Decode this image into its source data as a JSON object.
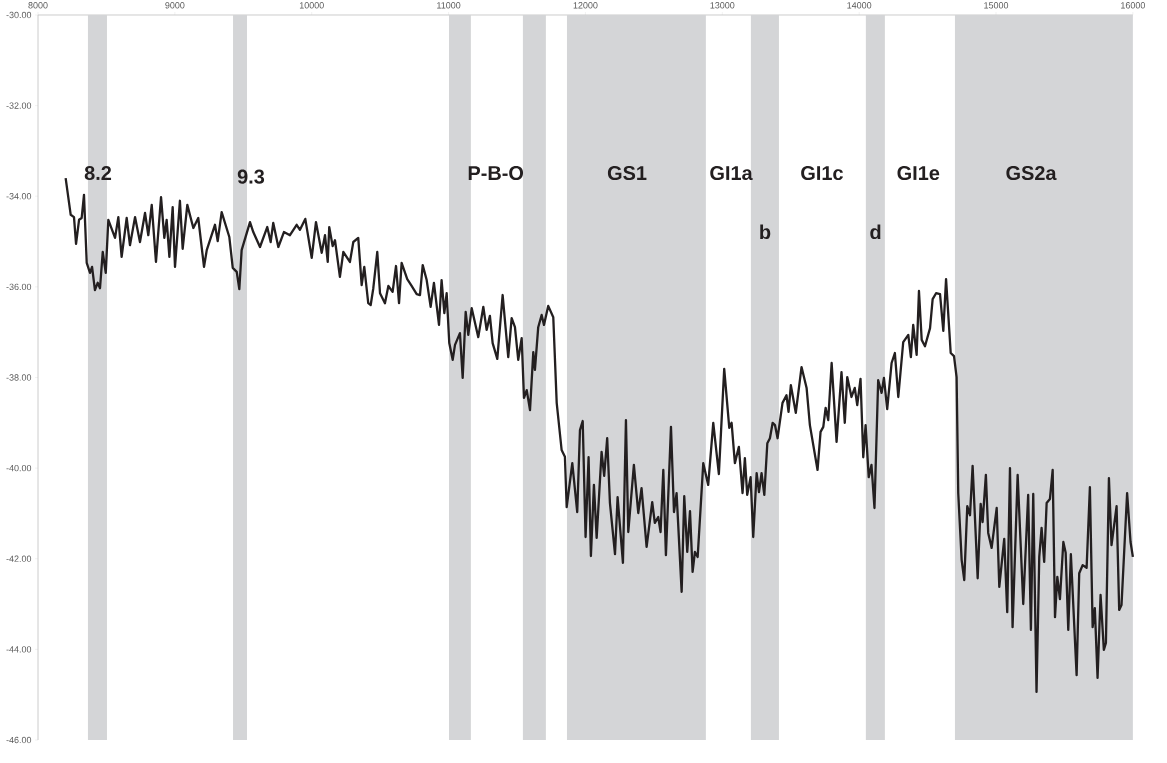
{
  "chart_data": {
    "type": "line",
    "marker": "none",
    "line_style": "solid",
    "xlim": [
      8000,
      16000
    ],
    "ylim": [
      -46,
      -30
    ],
    "xticks": [
      8000,
      9000,
      10000,
      11000,
      12000,
      13000,
      14000,
      15000,
      16000
    ],
    "yticks": [
      {
        "value": -30,
        "label": "-30.00"
      },
      {
        "value": -32,
        "label": "-32.00"
      },
      {
        "value": -34,
        "label": "-34.00"
      },
      {
        "value": -36,
        "label": "-36.00"
      },
      {
        "value": -38,
        "label": "-38.00"
      },
      {
        "value": -40,
        "label": "-40.00"
      },
      {
        "value": -42,
        "label": "-42.00"
      },
      {
        "value": -44,
        "label": "-44.00"
      },
      {
        "value": -46,
        "label": "-46.00"
      }
    ],
    "bands": [
      {
        "axis": "x",
        "from": 8365,
        "to": 8504,
        "color": "#d4d5d7"
      },
      {
        "axis": "x",
        "from": 9425,
        "to": 9527,
        "color": "#d4d5d7"
      },
      {
        "axis": "x",
        "from": 11003,
        "to": 11163,
        "color": "#d4d5d7"
      },
      {
        "axis": "x",
        "from": 11543,
        "to": 11711,
        "color": "#d4d5d7"
      },
      {
        "axis": "x",
        "from": 11865,
        "to": 12880,
        "color": "#d4d5d7"
      },
      {
        "axis": "x",
        "from": 13209,
        "to": 13414,
        "color": "#d4d5d7"
      },
      {
        "axis": "x",
        "from": 14049,
        "to": 14188,
        "color": "#d4d5d7"
      },
      {
        "axis": "x",
        "from": 14700,
        "to": 16000,
        "color": "#d4d5d7"
      }
    ],
    "annotations": [
      "8.2",
      "9.3",
      "P-B-O",
      "GS1",
      "GI1a",
      "b",
      "GI1c",
      "d",
      "GI1e",
      "GS2a"
    ],
    "series": [
      {
        "color": "#231f20",
        "x": [
          8202,
          8239,
          8263,
          8278,
          8300,
          8319,
          8336,
          8356,
          8380,
          8395,
          8416,
          8436,
          8453,
          8473,
          8495,
          8514,
          8563,
          8587,
          8611,
          8648,
          8672,
          8709,
          8745,
          8782,
          8806,
          8831,
          8862,
          8899,
          8923,
          8940,
          8960,
          8984,
          9001,
          9037,
          9057,
          9091,
          9135,
          9171,
          9213,
          9233,
          9293,
          9313,
          9342,
          9398,
          9423,
          9452,
          9471,
          9488,
          9549,
          9573,
          9622,
          9675,
          9700,
          9719,
          9756,
          9797,
          9841,
          9890,
          9914,
          9953,
          10000,
          10031,
          10073,
          10097,
          10117,
          10128,
          10153,
          10170,
          10206,
          10231,
          10279,
          10304,
          10340,
          10365,
          10384,
          10413,
          10431,
          10450,
          10479,
          10499,
          10535,
          10560,
          10591,
          10616,
          10638,
          10657,
          10698,
          10730,
          10767,
          10791,
          10811,
          10840,
          10869,
          10893,
          10930,
          10949,
          10969,
          10986,
          11005,
          11030,
          11047,
          11083,
          11103,
          11125,
          11144,
          11169,
          11217,
          11254,
          11278,
          11302,
          11322,
          11356,
          11395,
          11436,
          11461,
          11485,
          11509,
          11534,
          11551,
          11571,
          11595,
          11619,
          11631,
          11655,
          11680,
          11697,
          11728,
          11765,
          11790,
          11826,
          11850,
          11863,
          11904,
          11940,
          11960,
          11980,
          12001,
          12023,
          12040,
          12062,
          12082,
          12118,
          12137,
          12159,
          12179,
          12216,
          12235,
          12274,
          12296,
          12313,
          12354,
          12386,
          12410,
          12447,
          12488,
          12507,
          12532,
          12549,
          12569,
          12588,
          12625,
          12647,
          12666,
          12703,
          12722,
          12744,
          12764,
          12783,
          12800,
          12820,
          12861,
          12897,
          12934,
          12975,
          13014,
          13051,
          13068,
          13092,
          13121,
          13148,
          13165,
          13182,
          13207,
          13226,
          13251,
          13268,
          13287,
          13307,
          13329,
          13348,
          13368,
          13385,
          13404,
          13440,
          13469,
          13484,
          13501,
          13537,
          13579,
          13616,
          13640,
          13696,
          13718,
          13738,
          13755,
          13774,
          13799,
          13835,
          13871,
          13895,
          13913,
          13944,
          13968,
          13986,
          14010,
          14030,
          14047,
          14070,
          14090,
          14112,
          14139,
          14164,
          14181,
          14205,
          14237,
          14261,
          14286,
          14322,
          14359,
          14378,
          14395,
          14420,
          14437,
          14457,
          14481,
          14518,
          14537,
          14562,
          14591,
          14615,
          14635,
          14669,
          14693,
          14712,
          14724,
          14749,
          14768,
          14790,
          14810,
          14829,
          14866,
          14888,
          14902,
          14926,
          14943,
          14968,
          15005,
          15024,
          15060,
          15082,
          15102,
          15121,
          15158,
          15199,
          15235,
          15255,
          15272,
          15296,
          15316,
          15333,
          15352,
          15370,
          15394,
          15414,
          15431,
          15448,
          15467,
          15492,
          15509,
          15528,
          15547,
          15589,
          15608,
          15633,
          15662,
          15686,
          15706,
          15722,
          15742,
          15764,
          15788,
          15803,
          15825,
          15844,
          15881,
          15900,
          15917,
          15958,
          15983,
          16000
        ],
        "values": [
          -33.6,
          -34.41,
          -34.46,
          -35.05,
          -34.52,
          -34.48,
          -33.97,
          -35.47,
          -35.69,
          -35.56,
          -36.07,
          -35.91,
          -36.03,
          -35.23,
          -35.69,
          -34.52,
          -34.92,
          -34.46,
          -35.34,
          -34.48,
          -35.08,
          -34.46,
          -35.01,
          -34.37,
          -34.86,
          -34.19,
          -35.45,
          -34.02,
          -34.92,
          -34.52,
          -35.34,
          -34.24,
          -35.56,
          -34.1,
          -35.16,
          -34.19,
          -34.7,
          -34.48,
          -35.56,
          -35.19,
          -34.63,
          -34.99,
          -34.35,
          -34.9,
          -35.58,
          -35.67,
          -36.05,
          -35.19,
          -34.57,
          -34.79,
          -35.12,
          -34.68,
          -35.01,
          -34.59,
          -35.12,
          -34.79,
          -34.86,
          -34.63,
          -34.74,
          -34.5,
          -35.36,
          -34.57,
          -35.25,
          -34.86,
          -35.45,
          -34.68,
          -35.1,
          -34.97,
          -35.78,
          -35.23,
          -35.45,
          -35.01,
          -34.92,
          -35.96,
          -35.56,
          -36.36,
          -36.4,
          -36.03,
          -35.23,
          -36.14,
          -36.36,
          -35.98,
          -36.11,
          -35.54,
          -36.36,
          -35.47,
          -35.83,
          -35.98,
          -36.16,
          -36.18,
          -35.52,
          -35.85,
          -36.44,
          -35.91,
          -36.84,
          -35.85,
          -36.58,
          -36.14,
          -37.24,
          -37.61,
          -37.28,
          -37.02,
          -38.01,
          -36.55,
          -37.06,
          -36.47,
          -37.11,
          -36.44,
          -36.95,
          -36.64,
          -37.24,
          -37.59,
          -36.18,
          -37.55,
          -36.69,
          -36.89,
          -37.61,
          -37.13,
          -38.45,
          -38.28,
          -38.72,
          -37.44,
          -37.83,
          -36.89,
          -36.62,
          -36.84,
          -36.42,
          -36.67,
          -38.56,
          -39.6,
          -39.75,
          -40.86,
          -39.89,
          -40.97,
          -39.16,
          -38.96,
          -41.52,
          -39.76,
          -41.94,
          -40.37,
          -41.54,
          -39.64,
          -40.17,
          -39.34,
          -40.77,
          -41.9,
          -40.64,
          -42.09,
          -38.94,
          -41.41,
          -39.93,
          -40.99,
          -40.44,
          -41.74,
          -40.75,
          -41.21,
          -41.08,
          -41.41,
          -40.04,
          -41.92,
          -39.09,
          -40.97,
          -40.55,
          -42.73,
          -40.62,
          -41.85,
          -40.95,
          -42.29,
          -41.85,
          -41.96,
          -39.89,
          -40.37,
          -39.0,
          -40.13,
          -37.81,
          -39.11,
          -39.0,
          -39.89,
          -39.53,
          -40.55,
          -39.78,
          -40.59,
          -40.2,
          -41.52,
          -40.11,
          -40.53,
          -40.11,
          -40.59,
          -39.45,
          -39.34,
          -39.0,
          -39.05,
          -39.34,
          -38.56,
          -38.39,
          -38.76,
          -38.17,
          -38.78,
          -37.77,
          -38.23,
          -39.05,
          -40.04,
          -39.2,
          -39.09,
          -38.67,
          -38.94,
          -37.68,
          -39.42,
          -37.88,
          -39.0,
          -37.99,
          -38.43,
          -38.23,
          -38.61,
          -38.03,
          -39.76,
          -39.05,
          -40.2,
          -39.93,
          -40.88,
          -38.06,
          -38.34,
          -38.01,
          -38.7,
          -37.68,
          -37.46,
          -38.43,
          -37.22,
          -37.06,
          -37.55,
          -36.84,
          -37.5,
          -36.09,
          -37.17,
          -37.31,
          -36.91,
          -36.27,
          -36.14,
          -36.16,
          -36.97,
          -35.83,
          -37.46,
          -37.53,
          -37.99,
          -40.55,
          -42.03,
          -42.47,
          -40.84,
          -41.04,
          -39.95,
          -42.43,
          -40.79,
          -41.19,
          -40.15,
          -41.43,
          -41.76,
          -40.88,
          -42.62,
          -41.56,
          -43.18,
          -40.0,
          -43.51,
          -40.15,
          -43.0,
          -40.59,
          -43.57,
          -40.57,
          -44.94,
          -41.96,
          -41.32,
          -42.07,
          -40.77,
          -40.68,
          -40.04,
          -43.29,
          -42.4,
          -42.89,
          -41.63,
          -41.87,
          -43.57,
          -41.9,
          -44.57,
          -42.32,
          -42.14,
          -42.2,
          -40.42,
          -43.51,
          -43.09,
          -44.63,
          -42.8,
          -44.01,
          -43.86,
          -40.22,
          -41.7,
          -40.84,
          -43.13,
          -43.02,
          -40.55,
          -41.63,
          -41.96
        ]
      }
    ]
  }
}
